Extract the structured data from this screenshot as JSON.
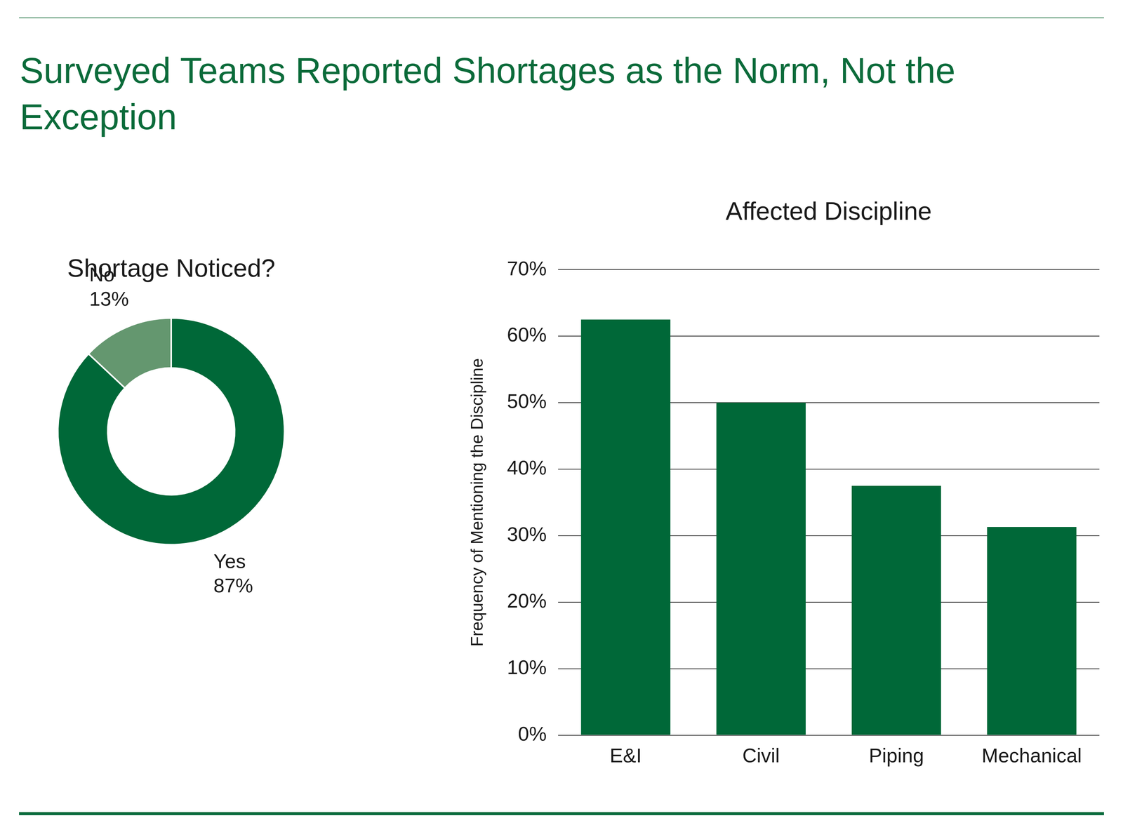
{
  "title": "Surveyed Teams Reported Shortages as the Norm, Not the Exception",
  "chart_data": [
    {
      "type": "doughnut",
      "title": "Shortage Noticed?",
      "categories": [
        "Yes",
        "No"
      ],
      "values": [
        87,
        13
      ],
      "value_labels": [
        "87%",
        "13%"
      ],
      "colors": [
        "#006838",
        "#64976f"
      ],
      "data_labels": true
    },
    {
      "type": "bar",
      "title": "Affected Discipline",
      "y_label": "Frequency of Mentioning the Discipline",
      "categories": [
        "E&I",
        "Civil",
        "Piping",
        "Mechanical"
      ],
      "values": [
        62.5,
        50,
        37.5,
        31.3
      ],
      "color": "#006838",
      "ylim": [
        0,
        70
      ],
      "yticks": [
        {
          "value": 0,
          "label": "0%"
        },
        {
          "value": 10,
          "label": "10%"
        },
        {
          "value": 20,
          "label": "20%"
        },
        {
          "value": 30,
          "label": "30%"
        },
        {
          "value": 40,
          "label": "40%"
        },
        {
          "value": 50,
          "label": "50%"
        },
        {
          "value": 60,
          "label": "60%"
        },
        {
          "value": 70,
          "label": "70%"
        }
      ],
      "grid": true
    }
  ]
}
